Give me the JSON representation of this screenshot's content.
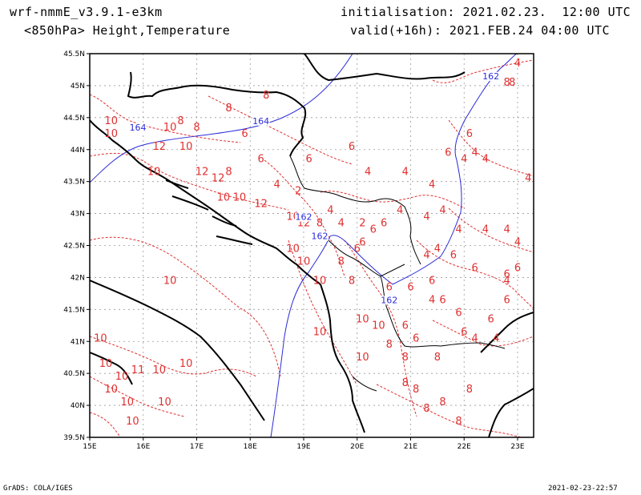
{
  "header": {
    "model": "wrf-nmmE_v3.9.1-e3km",
    "field": "<850hPa> Height,Temperature",
    "init": "initialisation: 2021.02.23.  12:00 UTC",
    "valid": "valid(+16h): 2021.FEB.24 04:00 UTC"
  },
  "footer": {
    "left": "GrADS: COLA/IGES",
    "right": "2021-02-23-22:57"
  },
  "map": {
    "lon_range": [
      15,
      23.3
    ],
    "lat_range": [
      39.5,
      45.5
    ],
    "lon_ticks": [
      "15E",
      "16E",
      "17E",
      "18E",
      "19E",
      "20E",
      "21E",
      "22E",
      "23E"
    ],
    "lat_ticks": [
      "39.5N",
      "40N",
      "40.5N",
      "41N",
      "41.5N",
      "42N",
      "42.5N",
      "43N",
      "43.5N",
      "44N",
      "44.5N",
      "45N",
      "45.5N"
    ],
    "grid": true,
    "colors": {
      "temperature": "#e03030",
      "height": "#2a2ad8",
      "coast": "#000000",
      "grid": "#999999"
    }
  },
  "temperature_labels": [
    {
      "text": "10",
      "lon": 15.4,
      "lat": 44.4
    },
    {
      "text": "10",
      "lon": 15.4,
      "lat": 44.2
    },
    {
      "text": "10",
      "lon": 16.5,
      "lat": 44.3
    },
    {
      "text": "8",
      "lon": 16.7,
      "lat": 44.4
    },
    {
      "text": "8",
      "lon": 17.0,
      "lat": 44.3
    },
    {
      "text": "8",
      "lon": 17.6,
      "lat": 44.6
    },
    {
      "text": "8",
      "lon": 18.3,
      "lat": 44.8
    },
    {
      "text": "6",
      "lon": 17.9,
      "lat": 44.2
    },
    {
      "text": "12",
      "lon": 16.3,
      "lat": 44.0
    },
    {
      "text": "10",
      "lon": 16.8,
      "lat": 44.0
    },
    {
      "text": "10",
      "lon": 16.2,
      "lat": 43.6
    },
    {
      "text": "12",
      "lon": 17.1,
      "lat": 43.6
    },
    {
      "text": "12",
      "lon": 17.4,
      "lat": 43.5
    },
    {
      "text": "8",
      "lon": 17.6,
      "lat": 43.6
    },
    {
      "text": "6",
      "lon": 18.2,
      "lat": 43.8
    },
    {
      "text": "10",
      "lon": 17.5,
      "lat": 43.2
    },
    {
      "text": "10",
      "lon": 17.8,
      "lat": 43.2
    },
    {
      "text": "12",
      "lon": 18.2,
      "lat": 43.1
    },
    {
      "text": "4",
      "lon": 18.5,
      "lat": 43.4
    },
    {
      "text": "6",
      "lon": 19.1,
      "lat": 43.8
    },
    {
      "text": "6",
      "lon": 19.9,
      "lat": 44.0
    },
    {
      "text": "4",
      "lon": 20.2,
      "lat": 43.6
    },
    {
      "text": "4",
      "lon": 20.9,
      "lat": 43.6
    },
    {
      "text": "4",
      "lon": 21.4,
      "lat": 43.4
    },
    {
      "text": "2",
      "lon": 18.9,
      "lat": 43.3
    },
    {
      "text": "10",
      "lon": 18.8,
      "lat": 42.9
    },
    {
      "text": "12",
      "lon": 19.0,
      "lat": 42.8
    },
    {
      "text": "8",
      "lon": 19.3,
      "lat": 42.8
    },
    {
      "text": "4",
      "lon": 19.5,
      "lat": 43.0
    },
    {
      "text": "4",
      "lon": 19.7,
      "lat": 42.8
    },
    {
      "text": "2",
      "lon": 20.1,
      "lat": 42.8
    },
    {
      "text": "6",
      "lon": 20.3,
      "lat": 42.7
    },
    {
      "text": "6",
      "lon": 20.5,
      "lat": 42.8
    },
    {
      "text": "4",
      "lon": 20.8,
      "lat": 43.0
    },
    {
      "text": "4",
      "lon": 21.3,
      "lat": 42.9
    },
    {
      "text": "4",
      "lon": 21.6,
      "lat": 43.0
    },
    {
      "text": "4",
      "lon": 21.9,
      "lat": 42.7
    },
    {
      "text": "4",
      "lon": 22.4,
      "lat": 42.7
    },
    {
      "text": "4",
      "lon": 22.8,
      "lat": 42.7
    },
    {
      "text": "10",
      "lon": 18.8,
      "lat": 42.4
    },
    {
      "text": "10",
      "lon": 19.0,
      "lat": 42.2
    },
    {
      "text": "8",
      "lon": 19.7,
      "lat": 42.2
    },
    {
      "text": "6",
      "lon": 20.0,
      "lat": 42.4
    },
    {
      "text": "6",
      "lon": 20.1,
      "lat": 42.5
    },
    {
      "text": "4",
      "lon": 21.3,
      "lat": 42.3
    },
    {
      "text": "4",
      "lon": 21.5,
      "lat": 42.4
    },
    {
      "text": "6",
      "lon": 21.8,
      "lat": 42.3
    },
    {
      "text": "6",
      "lon": 22.2,
      "lat": 42.1
    },
    {
      "text": "6",
      "lon": 22.8,
      "lat": 42.0
    },
    {
      "text": "6",
      "lon": 23.0,
      "lat": 42.1
    },
    {
      "text": "10",
      "lon": 16.5,
      "lat": 41.9
    },
    {
      "text": "10",
      "lon": 19.3,
      "lat": 41.9
    },
    {
      "text": "8",
      "lon": 19.9,
      "lat": 41.9
    },
    {
      "text": "6",
      "lon": 20.6,
      "lat": 41.8
    },
    {
      "text": "6",
      "lon": 21.0,
      "lat": 41.8
    },
    {
      "text": "6",
      "lon": 21.4,
      "lat": 41.9
    },
    {
      "text": "4",
      "lon": 21.4,
      "lat": 41.6
    },
    {
      "text": "6",
      "lon": 21.6,
      "lat": 41.6
    },
    {
      "text": "6",
      "lon": 21.9,
      "lat": 41.4
    },
    {
      "text": "6",
      "lon": 22.5,
      "lat": 41.3
    },
    {
      "text": "6",
      "lon": 22.8,
      "lat": 41.6
    },
    {
      "text": "4",
      "lon": 22.8,
      "lat": 41.9
    },
    {
      "text": "4",
      "lon": 22.2,
      "lat": 41.0
    },
    {
      "text": "6",
      "lon": 22.0,
      "lat": 41.1
    },
    {
      "text": "4",
      "lon": 22.6,
      "lat": 41.0
    },
    {
      "text": "10",
      "lon": 20.1,
      "lat": 41.3
    },
    {
      "text": "10",
      "lon": 20.4,
      "lat": 41.2
    },
    {
      "text": "6",
      "lon": 20.9,
      "lat": 41.2
    },
    {
      "text": "6",
      "lon": 21.1,
      "lat": 41.0
    },
    {
      "text": "8",
      "lon": 20.6,
      "lat": 40.9
    },
    {
      "text": "8",
      "lon": 20.9,
      "lat": 40.7
    },
    {
      "text": "10",
      "lon": 20.1,
      "lat": 40.7
    },
    {
      "text": "10",
      "lon": 19.3,
      "lat": 41.1
    },
    {
      "text": "10",
      "lon": 15.2,
      "lat": 41.0
    },
    {
      "text": "10",
      "lon": 15.3,
      "lat": 40.6
    },
    {
      "text": "10",
      "lon": 15.6,
      "lat": 40.4
    },
    {
      "text": "11",
      "lon": 15.9,
      "lat": 40.5
    },
    {
      "text": "10",
      "lon": 16.3,
      "lat": 40.5
    },
    {
      "text": "10",
      "lon": 16.8,
      "lat": 40.6
    },
    {
      "text": "10",
      "lon": 15.4,
      "lat": 40.2
    },
    {
      "text": "10",
      "lon": 15.7,
      "lat": 40.0
    },
    {
      "text": "10",
      "lon": 16.4,
      "lat": 40.0
    },
    {
      "text": "10",
      "lon": 15.8,
      "lat": 39.7
    },
    {
      "text": "8",
      "lon": 20.9,
      "lat": 40.3
    },
    {
      "text": "8",
      "lon": 21.1,
      "lat": 40.2
    },
    {
      "text": "8",
      "lon": 21.6,
      "lat": 40.0
    },
    {
      "text": "8",
      "lon": 21.3,
      "lat": 39.9
    },
    {
      "text": "8",
      "lon": 21.9,
      "lat": 39.7
    },
    {
      "text": "8",
      "lon": 22.1,
      "lat": 40.2
    },
    {
      "text": "8",
      "lon": 21.5,
      "lat": 40.7
    },
    {
      "text": "8",
      "lon": 22.8,
      "lat": 45.0
    },
    {
      "text": "8",
      "lon": 22.9,
      "lat": 45.0
    },
    {
      "text": "4",
      "lon": 23.0,
      "lat": 45.3
    },
    {
      "text": "4",
      "lon": 22.4,
      "lat": 43.8
    },
    {
      "text": "4",
      "lon": 22.0,
      "lat": 43.8
    },
    {
      "text": "4",
      "lon": 22.2,
      "lat": 43.9
    },
    {
      "text": "6",
      "lon": 21.7,
      "lat": 43.9
    },
    {
      "text": "6",
      "lon": 22.1,
      "lat": 44.2
    },
    {
      "text": "4",
      "lon": 23.2,
      "lat": 43.5
    },
    {
      "text": "4",
      "lon": 23.0,
      "lat": 42.5
    }
  ],
  "height_labels": [
    {
      "text": "164",
      "lon": 15.9,
      "lat": 44.3
    },
    {
      "text": "164",
      "lon": 18.2,
      "lat": 44.4
    },
    {
      "text": "162",
      "lon": 19.0,
      "lat": 42.9
    },
    {
      "text": "162",
      "lon": 19.3,
      "lat": 42.6
    },
    {
      "text": "162",
      "lon": 20.6,
      "lat": 41.6
    },
    {
      "text": "162",
      "lon": 22.5,
      "lat": 45.1
    }
  ]
}
